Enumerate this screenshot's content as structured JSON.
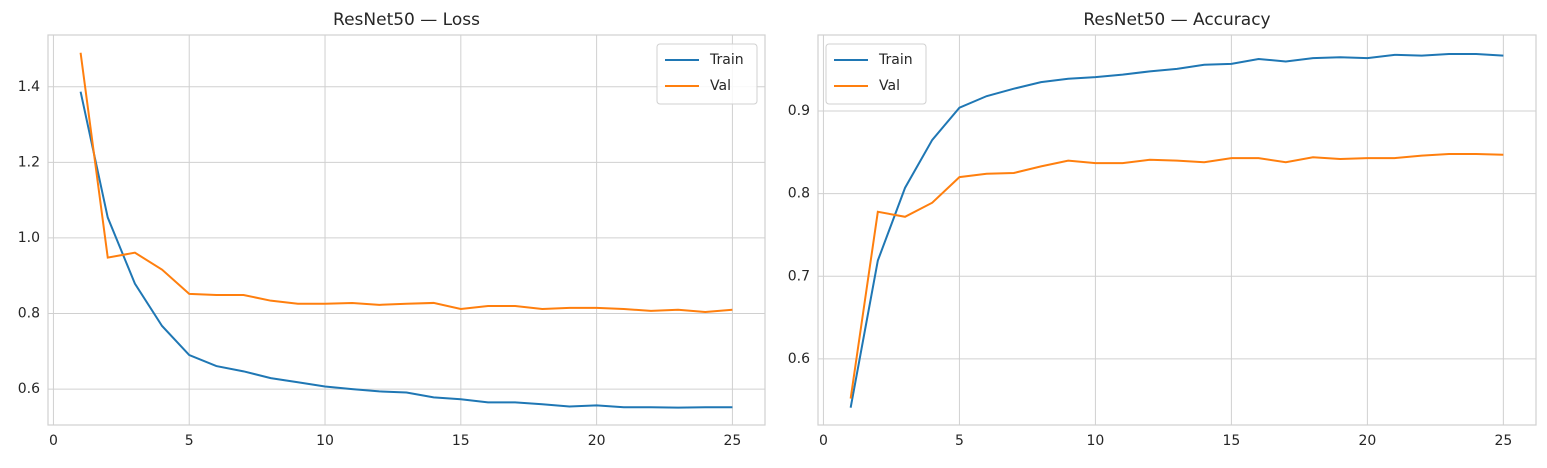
{
  "chart_data": [
    {
      "type": "line",
      "title": "ResNet50 — Loss",
      "x": [
        1,
        2,
        3,
        4,
        5,
        6,
        7,
        8,
        9,
        10,
        11,
        12,
        13,
        14,
        15,
        16,
        17,
        18,
        19,
        20,
        21,
        22,
        23,
        24,
        25
      ],
      "series": [
        {
          "name": "Train",
          "color": "#1f77b4",
          "values": [
            1.387,
            1.054,
            0.879,
            0.767,
            0.69,
            0.661,
            0.647,
            0.629,
            0.618,
            0.607,
            0.6,
            0.594,
            0.591,
            0.578,
            0.573,
            0.565,
            0.565,
            0.56,
            0.554,
            0.557,
            0.552,
            0.552,
            0.551,
            0.552,
            0.552
          ]
        },
        {
          "name": "Val",
          "color": "#ff7f0e",
          "values": [
            1.49,
            0.948,
            0.961,
            0.916,
            0.852,
            0.849,
            0.849,
            0.834,
            0.826,
            0.826,
            0.828,
            0.823,
            0.826,
            0.828,
            0.812,
            0.82,
            0.82,
            0.812,
            0.815,
            0.815,
            0.812,
            0.807,
            0.81,
            0.804,
            0.81
          ]
        }
      ],
      "xlim": [
        -0.2,
        26.2
      ],
      "xticks": [
        0,
        5,
        10,
        15,
        20,
        25
      ],
      "ylim": [
        0.505,
        1.537
      ],
      "yticks": [
        0.6,
        0.8,
        {
          "value": 1,
          "label": "1.0"
        },
        1.2,
        1.4
      ],
      "grid": true,
      "legend": "upper right"
    },
    {
      "type": "line",
      "title": "ResNet50 — Accuracy",
      "x": [
        1,
        2,
        3,
        4,
        5,
        6,
        7,
        8,
        9,
        10,
        11,
        12,
        13,
        14,
        15,
        16,
        17,
        18,
        19,
        20,
        21,
        22,
        23,
        24,
        25
      ],
      "series": [
        {
          "name": "Train",
          "color": "#1f77b4",
          "values": [
            0.541,
            0.719,
            0.807,
            0.865,
            0.904,
            0.918,
            0.927,
            0.935,
            0.939,
            0.941,
            0.944,
            0.948,
            0.951,
            0.956,
            0.957,
            0.963,
            0.96,
            0.964,
            0.965,
            0.964,
            0.968,
            0.967,
            0.969,
            0.969,
            0.967
          ]
        },
        {
          "name": "Val",
          "color": "#ff7f0e",
          "values": [
            0.552,
            0.778,
            0.772,
            0.789,
            0.82,
            0.824,
            0.825,
            0.833,
            0.84,
            0.837,
            0.837,
            0.841,
            0.84,
            0.838,
            0.843,
            0.843,
            0.838,
            0.844,
            0.842,
            0.843,
            0.843,
            0.846,
            0.848,
            0.848,
            0.847
          ]
        }
      ],
      "xlim": [
        -0.2,
        26.2
      ],
      "xticks": [
        0,
        5,
        10,
        15,
        20,
        25
      ],
      "ylim": [
        0.52,
        0.992
      ],
      "yticks": [
        0.6,
        0.7,
        0.8,
        0.9
      ],
      "grid": true,
      "legend": "upper left"
    }
  ]
}
